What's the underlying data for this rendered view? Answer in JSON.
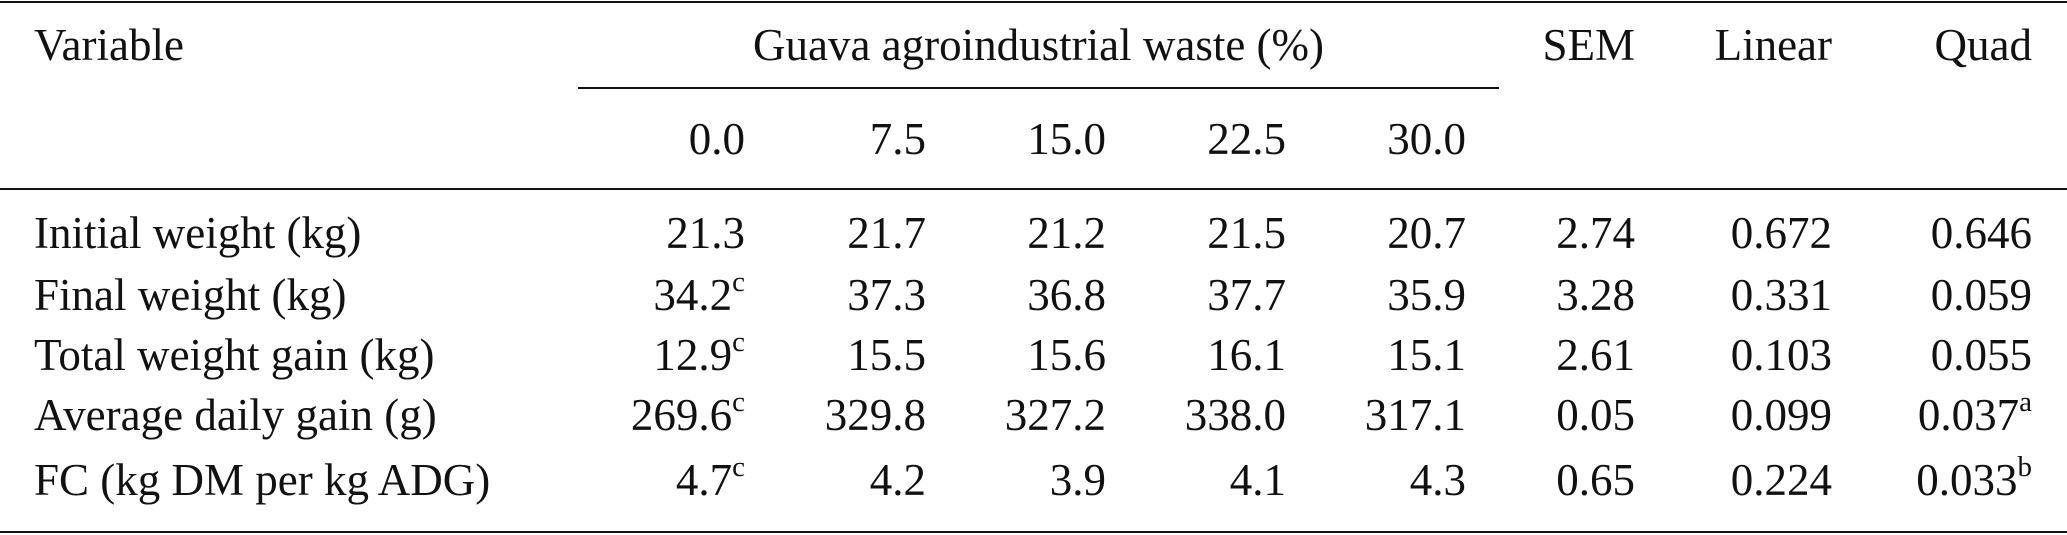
{
  "table": {
    "header": {
      "variable": "Variable",
      "group": "Guava agroindustrial waste (%)",
      "levels": [
        "0.0",
        "7.5",
        "15.0",
        "22.5",
        "30.0"
      ],
      "sem": "SEM",
      "linear": "Linear",
      "quad": "Quad"
    },
    "rows": [
      {
        "label": "Initial weight (kg)",
        "values": [
          {
            "v": "21.3",
            "sup": ""
          },
          {
            "v": "21.7",
            "sup": ""
          },
          {
            "v": "21.2",
            "sup": ""
          },
          {
            "v": "21.5",
            "sup": ""
          },
          {
            "v": "20.7",
            "sup": ""
          }
        ],
        "sem": "2.74",
        "linear": "0.672",
        "quad": {
          "v": "0.646",
          "sup": ""
        }
      },
      {
        "label": "Final weight (kg)",
        "values": [
          {
            "v": "34.2",
            "sup": "c"
          },
          {
            "v": "37.3",
            "sup": ""
          },
          {
            "v": "36.8",
            "sup": ""
          },
          {
            "v": "37.7",
            "sup": ""
          },
          {
            "v": "35.9",
            "sup": ""
          }
        ],
        "sem": "3.28",
        "linear": "0.331",
        "quad": {
          "v": "0.059",
          "sup": ""
        }
      },
      {
        "label": "Total weight gain (kg)",
        "values": [
          {
            "v": "12.9",
            "sup": "c"
          },
          {
            "v": "15.5",
            "sup": ""
          },
          {
            "v": "15.6",
            "sup": ""
          },
          {
            "v": "16.1",
            "sup": ""
          },
          {
            "v": "15.1",
            "sup": ""
          }
        ],
        "sem": "2.61",
        "linear": "0.103",
        "quad": {
          "v": "0.055",
          "sup": ""
        }
      },
      {
        "label": "Average daily gain (g)",
        "values": [
          {
            "v": "269.6",
            "sup": "c"
          },
          {
            "v": "329.8",
            "sup": ""
          },
          {
            "v": "327.2",
            "sup": ""
          },
          {
            "v": "338.0",
            "sup": ""
          },
          {
            "v": "317.1",
            "sup": ""
          }
        ],
        "sem": "0.05",
        "linear": "0.099",
        "quad": {
          "v": "0.037",
          "sup": "a"
        }
      },
      {
        "label": "FC (kg DM per kg ADG)",
        "values": [
          {
            "v": "4.7",
            "sup": "c"
          },
          {
            "v": "4.2",
            "sup": ""
          },
          {
            "v": "3.9",
            "sup": ""
          },
          {
            "v": "4.1",
            "sup": ""
          },
          {
            "v": "4.3",
            "sup": ""
          }
        ],
        "sem": "0.65",
        "linear": "0.224",
        "quad": {
          "v": "0.033",
          "sup": "b"
        }
      }
    ]
  }
}
